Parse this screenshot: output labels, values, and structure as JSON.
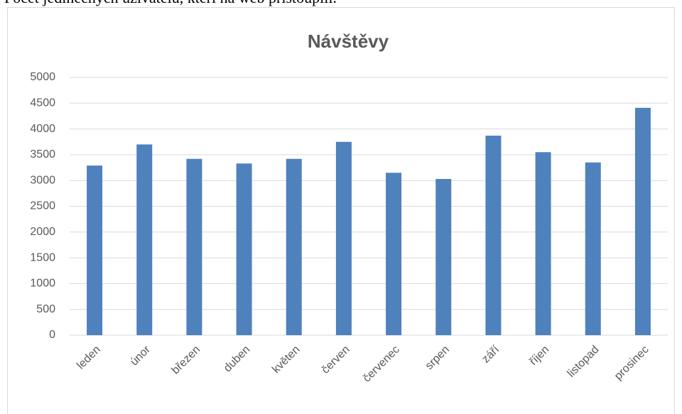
{
  "caption": "Počet jedinečných uživatelů, kteří na web přistoupili.",
  "chart_data": {
    "type": "bar",
    "title": "Návštěvy",
    "categories": [
      "leden",
      "únor",
      "březen",
      "duben",
      "květen",
      "červen",
      "červenec",
      "srpen",
      "září",
      "říjen",
      "listopad",
      "prosinec"
    ],
    "values": [
      3290,
      3700,
      3420,
      3330,
      3420,
      3750,
      3150,
      3030,
      3870,
      3550,
      3350,
      4410
    ],
    "color": "#4f81bd",
    "ylim": [
      0,
      5000
    ],
    "yticks": [
      0,
      500,
      1000,
      1500,
      2000,
      2500,
      3000,
      3500,
      4000,
      4500,
      5000
    ],
    "grid": true
  }
}
